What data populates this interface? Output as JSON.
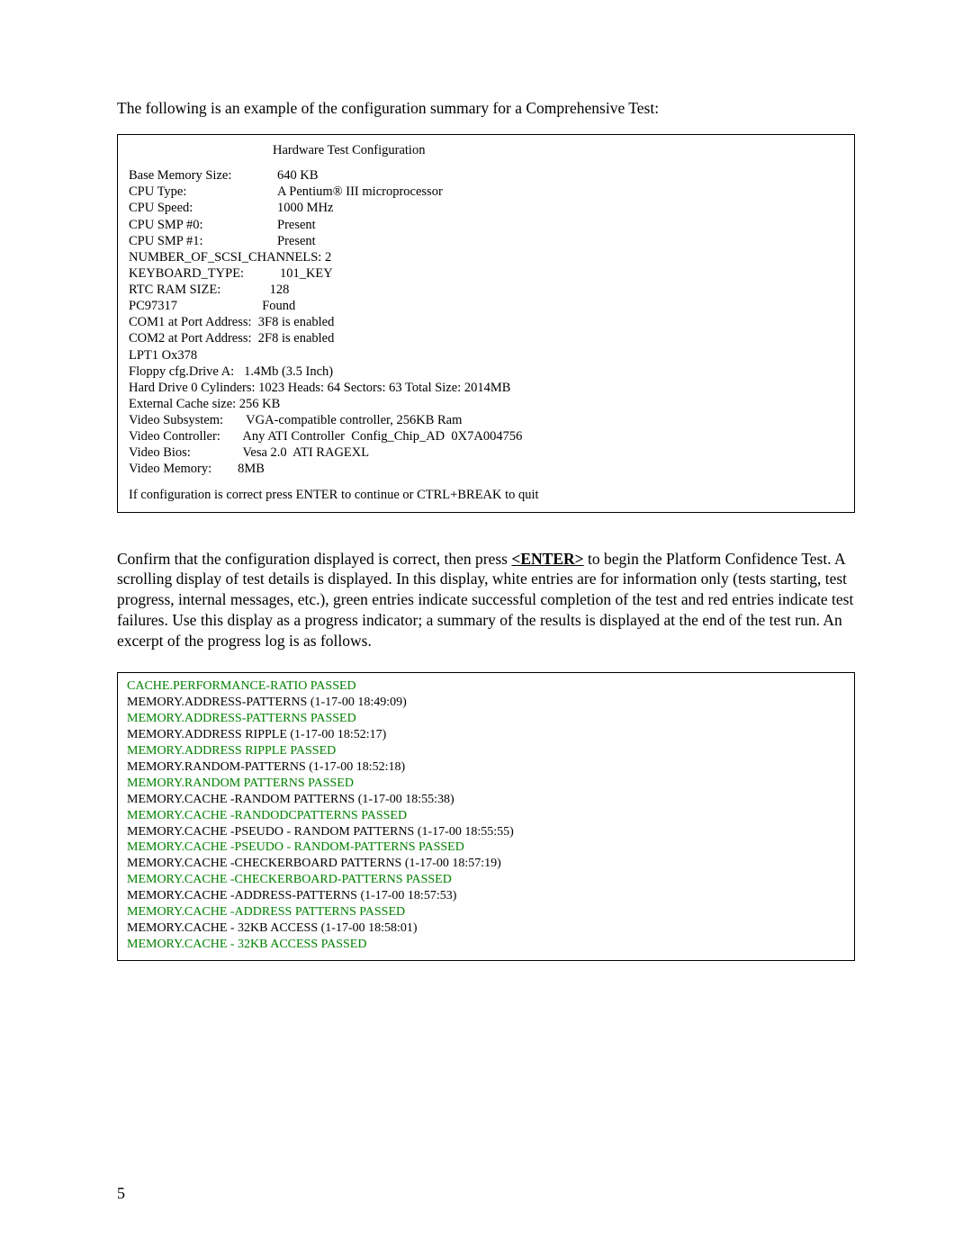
{
  "intro": "The following is an example of the configuration summary for a Comprehensive Test:",
  "config_box": {
    "title": "Hardware Test Configuration",
    "rows": [
      {
        "label": "Base Memory Size:",
        "value": "640 KB"
      },
      {
        "label": "CPU Type:",
        "value": "A Pentium® III microprocessor"
      },
      {
        "label": "CPU Speed:",
        "value": "1000 MHz"
      },
      {
        "label": "CPU SMP #0:",
        "value": "Present"
      },
      {
        "label": "CPU SMP #1:",
        "value": "Present"
      }
    ],
    "lines_full": [
      "NUMBER_OF_SCSI_CHANNELS: 2",
      "KEYBOARD_TYPE:           101_KEY",
      "RTC RAM SIZE:               128",
      "PC97317                          Found",
      "COM1 at Port Address:  3F8 is enabled",
      "COM2 at Port Address:  2F8 is enabled",
      "LPT1 Ox378",
      "Floppy cfg.Drive A:   1.4Mb (3.5 Inch)",
      "Hard Drive 0 Cylinders: 1023 Heads: 64 Sectors: 63 Total Size: 2014MB",
      "External Cache size: 256 KB",
      "Video Subsystem:       VGA-compatible controller, 256KB Ram",
      "Video Controller:       Any ATI Controller  Config_Chip_AD  0X7A004756",
      "Video Bios:                Vesa 2.0  ATI RAGEXL",
      "Video Memory:        8MB"
    ],
    "footer": "If configuration is correct press ENTER to continue or CTRL+BREAK to quit"
  },
  "body_para_pre": "Confirm that the configuration displayed is correct, then press ",
  "enter_text": "<ENTER>",
  "body_para_post": " to begin the Platform Confidence Test.  A scrolling display of test details is displayed.  In this display, white entries are for information only (tests starting, test progress, internal messages, etc.), green entries indicate successful completion of the test and red entries indicate test failures.  Use this display as a progress indicator; a summary of the results is displayed at the end of the test run.  An excerpt of the progress log is as follows.",
  "log_lines": [
    {
      "text": "CACHE.PERFORMANCE-RATIO PASSED",
      "color": "green"
    },
    {
      "text": "MEMORY.ADDRESS-PATTERNS (1-17-00 18:49:09)",
      "color": "black"
    },
    {
      "text": "MEMORY.ADDRESS-PATTERNS PASSED",
      "color": "green"
    },
    {
      "text": "MEMORY.ADDRESS RIPPLE (1-17-00 18:52:17)",
      "color": "black"
    },
    {
      "text": "MEMORY.ADDRESS RIPPLE PASSED",
      "color": "green"
    },
    {
      "text": "MEMORY.RANDOM-PATTERNS (1-17-00 18:52:18)",
      "color": "black"
    },
    {
      "text": "MEMORY.RANDOM PATTERNS PASSED",
      "color": "green"
    },
    {
      "text": "MEMORY.CACHE -RANDOM PATTERNS (1-17-00 18:55:38)",
      "color": "black"
    },
    {
      "text": "MEMORY.CACHE -RANDODCPATTERNS PASSED",
      "color": "green"
    },
    {
      "text": "MEMORY.CACHE -PSEUDO - RANDOM PATTERNS (1-17-00 18:55:55)",
      "color": "black"
    },
    {
      "text": "MEMORY.CACHE -PSEUDO - RANDOM-PATTERNS PASSED",
      "color": "green"
    },
    {
      "text": "MEMORY.CACHE -CHECKERBOARD PATTERNS (1-17-00 18:57:19)",
      "color": "black"
    },
    {
      "text": "MEMORY.CACHE -CHECKERBOARD-PATTERNS PASSED",
      "color": "green"
    },
    {
      "text": "MEMORY.CACHE -ADDRESS-PATTERNS (1-17-00 18:57:53)",
      "color": "black"
    },
    {
      "text": "MEMORY.CACHE -ADDRESS PATTERNS PASSED",
      "color": "green"
    },
    {
      "text": "MEMORY.CACHE - 32KB ACCESS (1-17-00 18:58:01)",
      "color": "black"
    },
    {
      "text": "MEMORY.CACHE - 32KB ACCESS PASSED",
      "color": "green"
    }
  ],
  "page_number": "5",
  "colors": {
    "green": "#008000",
    "black": "#000000"
  }
}
